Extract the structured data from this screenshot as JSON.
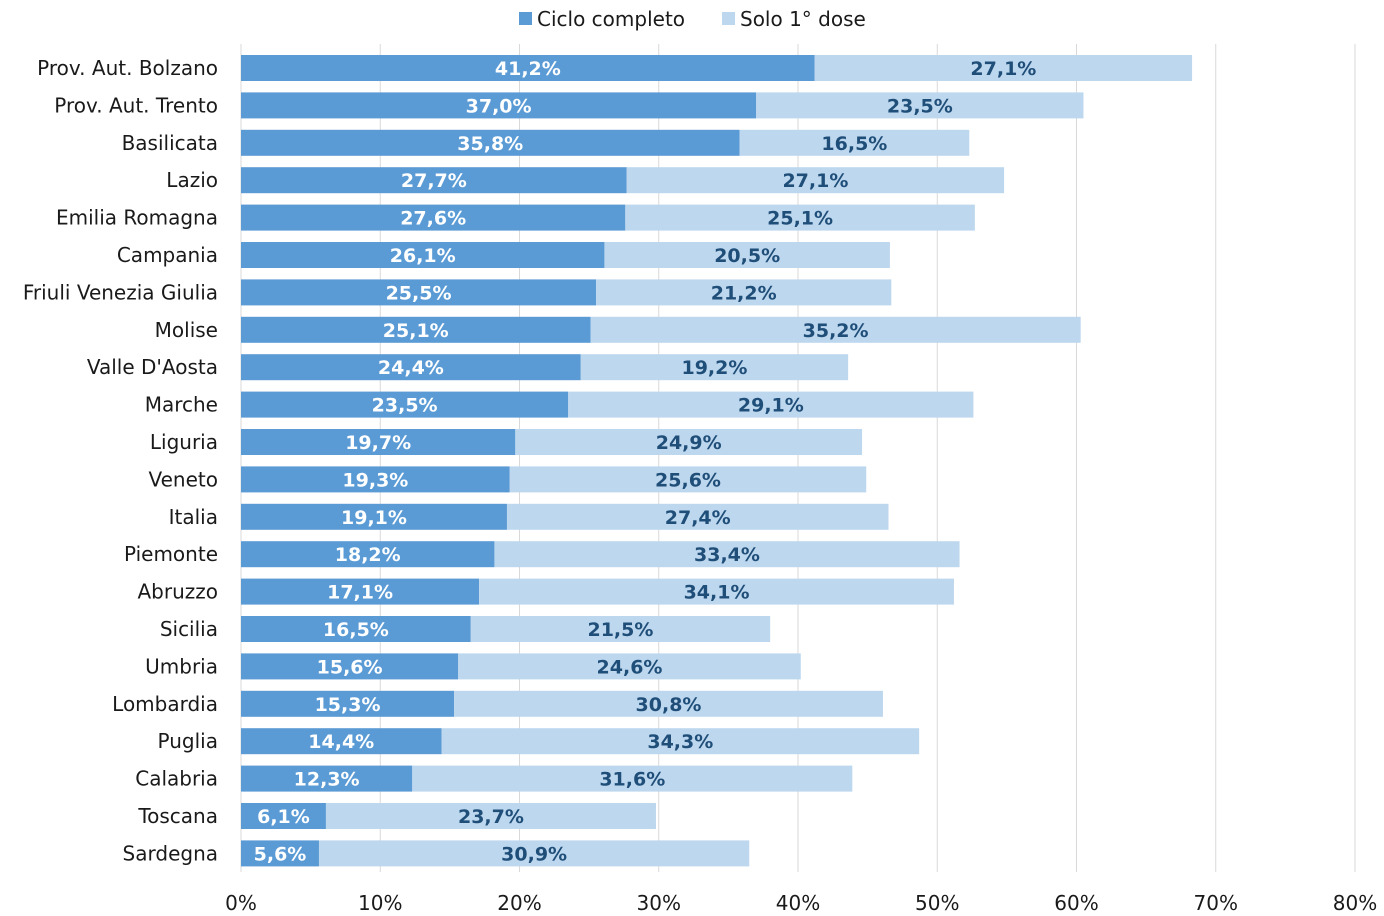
{
  "chart_data": {
    "type": "bar",
    "orientation": "horizontal",
    "stacked": true,
    "title": "",
    "xlabel": "",
    "ylabel": "",
    "xlim": [
      0,
      80
    ],
    "x_ticks": [
      "0%",
      "10%",
      "20%",
      "30%",
      "40%",
      "50%",
      "60%",
      "70%",
      "80%"
    ],
    "grid": "vertical",
    "legend_position": "top",
    "categories": [
      "Prov. Aut. Bolzano",
      "Prov. Aut. Trento",
      "Basilicata",
      "Lazio",
      "Emilia Romagna",
      "Campania",
      "Friuli Venezia Giulia",
      "Molise",
      "Valle D'Aosta",
      "Marche",
      "Liguria",
      "Veneto",
      "Italia",
      "Piemonte",
      "Abruzzo",
      "Sicilia",
      "Umbria",
      "Lombardia",
      "Puglia",
      "Calabria",
      "Toscana",
      "Sardegna"
    ],
    "series": [
      {
        "name": "Ciclo completo",
        "color": "#5b9bd5",
        "label_color": "#ffffff",
        "values": [
          41.2,
          37.0,
          35.8,
          27.7,
          27.6,
          26.1,
          25.5,
          25.1,
          24.4,
          23.5,
          19.7,
          19.3,
          19.1,
          18.2,
          17.1,
          16.5,
          15.6,
          15.3,
          14.4,
          12.3,
          6.1,
          5.6
        ],
        "labels": [
          "41,2%",
          "37,0%",
          "35,8%",
          "27,7%",
          "27,6%",
          "26,1%",
          "25,5%",
          "25,1%",
          "24,4%",
          "23,5%",
          "19,7%",
          "19,3%",
          "19,1%",
          "18,2%",
          "17,1%",
          "16,5%",
          "15,6%",
          "15,3%",
          "14,4%",
          "12,3%",
          "6,1%",
          "5,6%"
        ]
      },
      {
        "name": "Solo 1° dose",
        "color": "#bdd7ee",
        "label_color": "#1f4e79",
        "values": [
          27.1,
          23.5,
          16.5,
          27.1,
          25.1,
          20.5,
          21.2,
          35.2,
          19.2,
          29.1,
          24.9,
          25.6,
          27.4,
          33.4,
          34.1,
          21.5,
          24.6,
          30.8,
          34.3,
          31.6,
          23.7,
          30.9
        ],
        "labels": [
          "27,1%",
          "23,5%",
          "16,5%",
          "27,1%",
          "25,1%",
          "20,5%",
          "21,2%",
          "35,2%",
          "19,2%",
          "29,1%",
          "24,9%",
          "25,6%",
          "27,4%",
          "33,4%",
          "34,1%",
          "21,5%",
          "24,6%",
          "30,8%",
          "34,3%",
          "31,6%",
          "23,7%",
          "30,9%"
        ]
      }
    ]
  }
}
